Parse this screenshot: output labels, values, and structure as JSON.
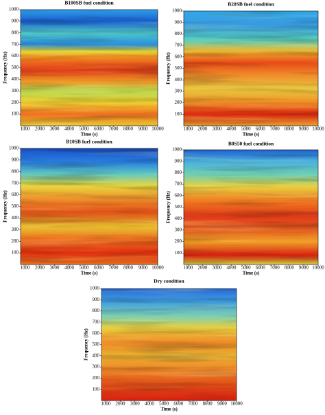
{
  "chart_data": [
    {
      "type": "heatmap",
      "title": "B100SB fuel condition",
      "x_label": "Time (s)",
      "y_label": "Frequency (Hz)",
      "xlim": [
        700,
        10000
      ],
      "xticks": [
        1000,
        2000,
        3000,
        4000,
        5000,
        6000,
        7000,
        8000,
        9000,
        10000
      ],
      "ylim": [
        0,
        1000
      ],
      "yticks": [
        100,
        200,
        300,
        400,
        500,
        600,
        700,
        800,
        900,
        1000
      ]
    },
    {
      "type": "heatmap",
      "title": "B20SB fuel condition",
      "x_label": "Time (s)",
      "y_label": "Frequency (Hz)",
      "xlim": [
        700,
        10000
      ],
      "xticks": [
        1000,
        2000,
        3000,
        4000,
        5000,
        6000,
        7000,
        8000,
        9000,
        10000
      ],
      "ylim": [
        0,
        1000
      ],
      "yticks": [
        100,
        200,
        300,
        400,
        500,
        600,
        700,
        800,
        900,
        1000
      ]
    },
    {
      "type": "heatmap",
      "title": "B10SB fuel condition",
      "x_label": "Time (s)",
      "y_label": "Frequency (Hz)",
      "xlim": [
        700,
        10000
      ],
      "xticks": [
        1000,
        2000,
        3000,
        4000,
        5000,
        6000,
        7000,
        8000,
        9000,
        10000
      ],
      "ylim": [
        0,
        1000
      ],
      "yticks": [
        100,
        200,
        300,
        400,
        500,
        600,
        700,
        800,
        900,
        1000
      ]
    },
    {
      "type": "heatmap",
      "title": "B0S50 fuel condition",
      "x_label": "Time (s)",
      "y_label": "Frequency (Hz)",
      "xlim": [
        700,
        10000
      ],
      "xticks": [
        1000,
        2000,
        3000,
        4000,
        5000,
        6000,
        7000,
        8000,
        9000,
        10000
      ],
      "ylim": [
        0,
        1000
      ],
      "yticks": [
        100,
        200,
        300,
        400,
        500,
        600,
        700,
        800,
        900,
        1000
      ]
    },
    {
      "type": "heatmap",
      "title": "Dry condition",
      "x_label": "Time (s)",
      "y_label": "Frequency (Hz)",
      "xlim": [
        700,
        10000
      ],
      "xticks": [
        1000,
        2000,
        3000,
        4000,
        5000,
        6000,
        7000,
        8000,
        9000,
        10000
      ],
      "ylim": [
        0,
        1000
      ],
      "yticks": [
        100,
        200,
        300,
        400,
        500,
        600,
        700,
        800,
        900,
        1000
      ]
    }
  ]
}
